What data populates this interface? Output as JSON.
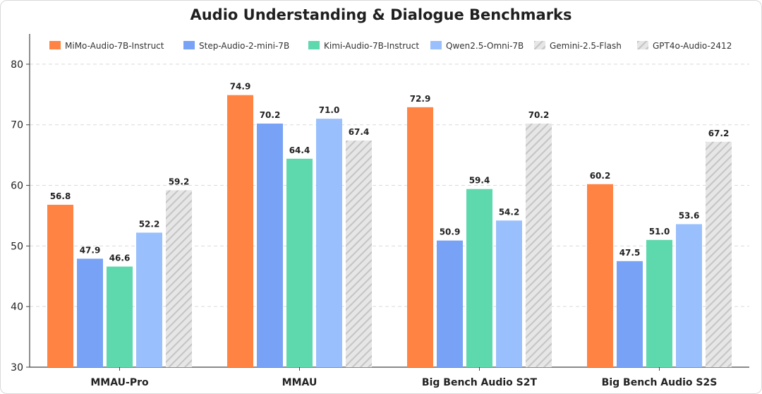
{
  "chart_data": {
    "type": "bar",
    "title": "Audio Understanding & Dialogue Benchmarks",
    "xlabel": "",
    "ylabel": "",
    "ylim": [
      30,
      85
    ],
    "yticks": [
      30,
      40,
      50,
      60,
      70,
      80
    ],
    "grid": "horizontal-dashed",
    "legend_position": "top",
    "categories": [
      "MMAU-Pro",
      "MMAU",
      "Big Bench Audio S2T",
      "Big Bench Audio S2S"
    ],
    "series": [
      {
        "name": "MiMo-Audio-7B-Instruct",
        "color": "#ff8444",
        "pattern": "solid",
        "values": [
          56.8,
          74.9,
          72.9,
          60.2
        ]
      },
      {
        "name": "Step-Audio-2-mini-7B",
        "color": "#78a2f5",
        "pattern": "solid",
        "values": [
          47.9,
          70.2,
          50.9,
          47.5
        ]
      },
      {
        "name": "Kimi-Audio-7B-Instruct",
        "color": "#5ed8ad",
        "pattern": "solid",
        "values": [
          46.6,
          64.4,
          59.4,
          51.0
        ]
      },
      {
        "name": "Qwen2.5-Omni-7B",
        "color": "#99c0fc",
        "pattern": "solid",
        "values": [
          52.2,
          71.0,
          54.2,
          53.6
        ]
      },
      {
        "name": "Gemini-2.5-Flash",
        "color": "#d6d6d6",
        "pattern": "hatched",
        "values": [
          null,
          null,
          null,
          null
        ]
      },
      {
        "name": "GPT4o-Audio-2412",
        "color": "#d6d6d6",
        "pattern": "hatched",
        "values": [
          59.2,
          67.4,
          70.2,
          67.2
        ]
      }
    ]
  }
}
